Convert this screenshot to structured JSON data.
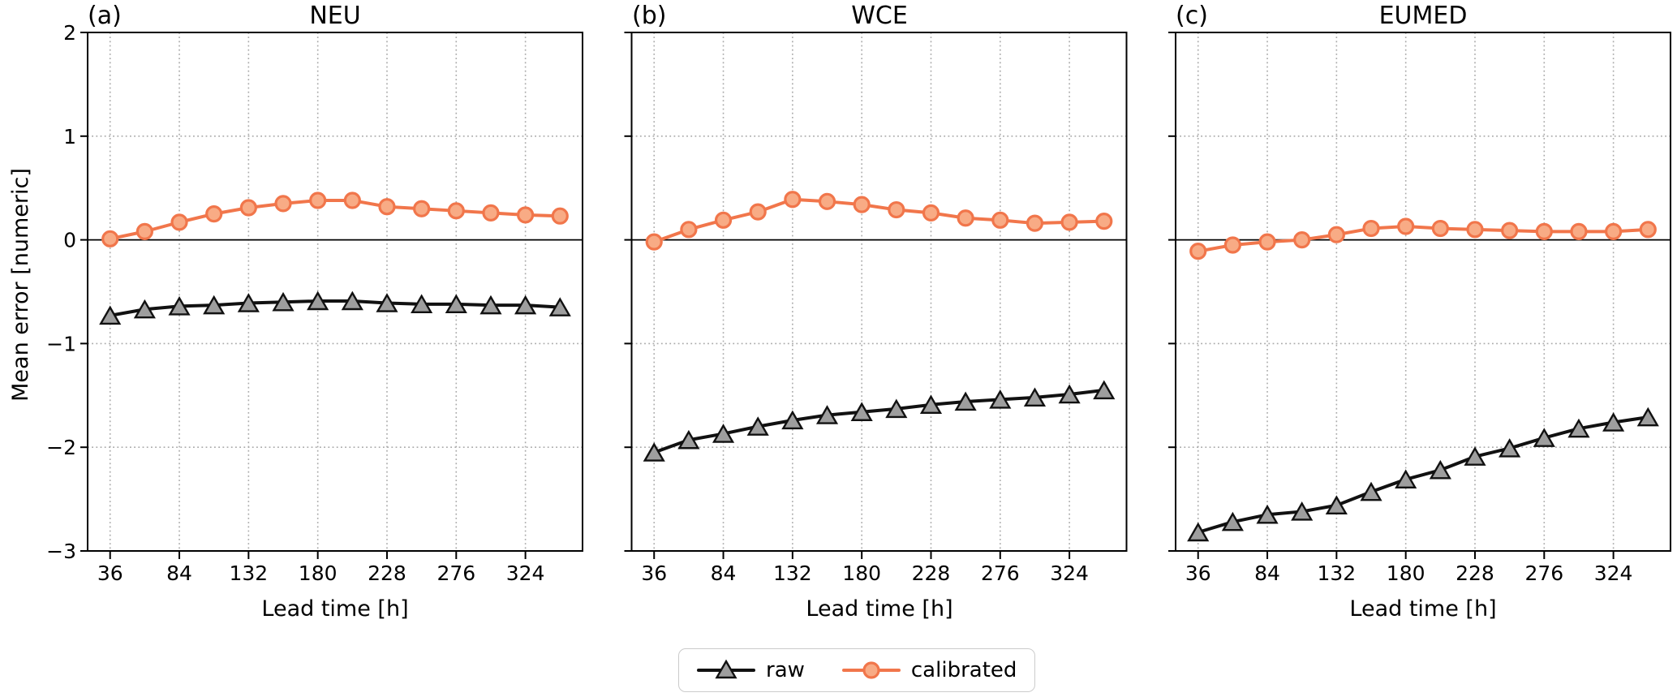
{
  "figure": {
    "ylabel": "Mean error [numeric]",
    "xlabel": "Lead time [h]",
    "panels": [
      {
        "corner_label": "(a)"
      },
      {
        "corner_label": "(b)"
      },
      {
        "corner_label": "(c)"
      }
    ],
    "legend": {
      "position": "bottom-center",
      "items": [
        {
          "label": "raw",
          "series": "raw",
          "marker": "triangle"
        },
        {
          "label": "calibrated",
          "series": "calibrated",
          "marker": "circle"
        }
      ]
    },
    "colors": {
      "raw_line": "#111111",
      "raw_marker_fill": "#9e9e9e",
      "calibrated_line": "#f1764b",
      "calibrated_marker_fill": "#f8ab85",
      "grid": "#aaaaaa",
      "spine": "#000000",
      "zero_line": "#000000",
      "legend_border": "#cbcbcb",
      "text": "#000000"
    }
  },
  "chart_data": [
    {
      "type": "line",
      "title": "NEU",
      "xlabel": "Lead time [h]",
      "ylabel": "Mean error [numeric]",
      "x": [
        36,
        60,
        84,
        108,
        132,
        156,
        180,
        204,
        228,
        252,
        276,
        300,
        324,
        348
      ],
      "series": [
        {
          "name": "raw",
          "values": [
            -0.73,
            -0.67,
            -0.64,
            -0.63,
            -0.61,
            -0.6,
            -0.59,
            -0.59,
            -0.61,
            -0.62,
            -0.62,
            -0.63,
            -0.63,
            -0.65
          ]
        },
        {
          "name": "calibrated",
          "values": [
            0.01,
            0.08,
            0.17,
            0.25,
            0.31,
            0.35,
            0.38,
            0.38,
            0.32,
            0.3,
            0.28,
            0.26,
            0.24,
            0.23
          ]
        }
      ],
      "xlim": [
        20.4,
        363.6
      ],
      "ylim": [
        -3,
        2
      ],
      "x_ticks": {
        "values": [
          36,
          84,
          132,
          180,
          228,
          276,
          324
        ],
        "labels": [
          "36",
          "84",
          "132",
          "180",
          "228",
          "276",
          "324"
        ]
      },
      "y_ticks": {
        "values": [
          2,
          1,
          0,
          -1,
          -2,
          -3
        ],
        "labels": [
          "2",
          "1",
          "0",
          "−1",
          "−2",
          "−3"
        ],
        "show_labels": true
      },
      "grid": true,
      "zero_line": true,
      "legend_position": "below-figure"
    },
    {
      "type": "line",
      "title": "WCE",
      "xlabel": "Lead time [h]",
      "ylabel": "Mean error [numeric]",
      "x": [
        36,
        60,
        84,
        108,
        132,
        156,
        180,
        204,
        228,
        252,
        276,
        300,
        324,
        348
      ],
      "series": [
        {
          "name": "raw",
          "values": [
            -2.05,
            -1.93,
            -1.87,
            -1.8,
            -1.74,
            -1.69,
            -1.66,
            -1.63,
            -1.59,
            -1.56,
            -1.54,
            -1.52,
            -1.49,
            -1.45
          ]
        },
        {
          "name": "calibrated",
          "values": [
            -0.02,
            0.1,
            0.19,
            0.27,
            0.39,
            0.37,
            0.34,
            0.29,
            0.26,
            0.21,
            0.19,
            0.16,
            0.17,
            0.18
          ]
        }
      ],
      "xlim": [
        20.4,
        363.6
      ],
      "ylim": [
        -3,
        2
      ],
      "x_ticks": {
        "values": [
          36,
          84,
          132,
          180,
          228,
          276,
          324
        ],
        "labels": [
          "36",
          "84",
          "132",
          "180",
          "228",
          "276",
          "324"
        ]
      },
      "y_ticks": {
        "values": [
          2,
          1,
          0,
          -1,
          -2,
          -3
        ],
        "labels": [
          "2",
          "1",
          "0",
          "−1",
          "−2",
          "−3"
        ],
        "show_labels": false
      },
      "grid": true,
      "zero_line": true,
      "legend_position": "below-figure"
    },
    {
      "type": "line",
      "title": "EUMED",
      "xlabel": "Lead time [h]",
      "ylabel": "Mean error [numeric]",
      "x": [
        36,
        60,
        84,
        108,
        132,
        156,
        180,
        204,
        228,
        252,
        276,
        300,
        324,
        348
      ],
      "series": [
        {
          "name": "raw",
          "values": [
            -2.82,
            -2.72,
            -2.65,
            -2.62,
            -2.56,
            -2.43,
            -2.31,
            -2.22,
            -2.09,
            -2.01,
            -1.91,
            -1.82,
            -1.76,
            -1.71
          ]
        },
        {
          "name": "calibrated",
          "values": [
            -0.11,
            -0.05,
            -0.02,
            0.0,
            0.05,
            0.11,
            0.13,
            0.11,
            0.1,
            0.09,
            0.08,
            0.08,
            0.08,
            0.1
          ]
        }
      ],
      "xlim": [
        20.4,
        363.6
      ],
      "ylim": [
        -3,
        2
      ],
      "x_ticks": {
        "values": [
          36,
          84,
          132,
          180,
          228,
          276,
          324
        ],
        "labels": [
          "36",
          "84",
          "132",
          "180",
          "228",
          "276",
          "324"
        ]
      },
      "y_ticks": {
        "values": [
          2,
          1,
          0,
          -1,
          -2,
          -3
        ],
        "labels": [
          "2",
          "1",
          "0",
          "−1",
          "−2",
          "−3"
        ],
        "show_labels": false
      },
      "grid": true,
      "zero_line": true,
      "legend_position": "below-figure"
    }
  ]
}
